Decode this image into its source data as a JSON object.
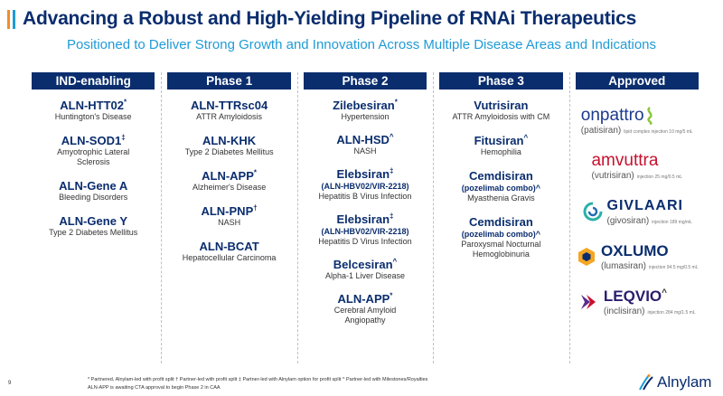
{
  "title": "Advancing a Robust and High-Yielding Pipeline of RNAi Therapeutics",
  "subtitle": "Positioned to Deliver Strong Growth and Innovation Across Multiple Disease Areas and Indications",
  "columns": [
    {
      "header": "IND-enabling",
      "assets": [
        {
          "name": "ALN-HTT02",
          "mark": "*",
          "indication": "Huntington's Disease"
        },
        {
          "name": "ALN-SOD1",
          "mark": "‡",
          "indication": "Amyotrophic Lateral Sclerosis"
        },
        {
          "name": "ALN-Gene A",
          "mark": "",
          "indication": "Bleeding Disorders"
        },
        {
          "name": "ALN-Gene Y",
          "mark": "",
          "indication": "Type 2 Diabetes Mellitus"
        }
      ]
    },
    {
      "header": "Phase 1",
      "assets": [
        {
          "name": "ALN-TTRsc04",
          "mark": "",
          "indication": "ATTR Amyloidosis"
        },
        {
          "name": "ALN-KHK",
          "mark": "",
          "indication": "Type 2 Diabetes Mellitus"
        },
        {
          "name": "ALN-APP",
          "mark": "*",
          "indication": "Alzheimer's Disease"
        },
        {
          "name": "ALN-PNP",
          "mark": "†",
          "indication": "NASH"
        },
        {
          "name": "ALN-BCAT",
          "mark": "",
          "indication": "Hepatocellular Carcinoma"
        }
      ]
    },
    {
      "header": "Phase 2",
      "assets": [
        {
          "name": "Zilebesiran",
          "mark": "*",
          "sub": "",
          "indication": "Hypertension"
        },
        {
          "name": "ALN-HSD",
          "mark": "^",
          "sub": "",
          "indication": "NASH"
        },
        {
          "name": "Elebsiran",
          "mark": "‡",
          "sub": "(ALN-HBV02/VIR-2218)",
          "indication": "Hepatitis B Virus Infection"
        },
        {
          "name": "Elebsiran",
          "mark": "‡",
          "sub": "(ALN-HBV02/VIR-2218)",
          "indication": "Hepatitis D Virus Infection"
        },
        {
          "name": "Belcesiran",
          "mark": "^",
          "sub": "",
          "indication": "Alpha-1 Liver Disease"
        },
        {
          "name": "ALN-APP",
          "mark": "*",
          "sub": "",
          "indication": "Cerebral Amyloid Angiopathy"
        }
      ]
    },
    {
      "header": "Phase 3",
      "assets": [
        {
          "name": "Vutrisiran",
          "mark": "",
          "sub": "",
          "indication": "ATTR Amyloidosis with CM"
        },
        {
          "name": "Fitusiran",
          "mark": "^",
          "sub": "",
          "indication": "Hemophilia"
        },
        {
          "name": "Cemdisiran",
          "mark": "",
          "sub": "(pozelimab combo)^",
          "indication": "Myasthenia Gravis"
        },
        {
          "name": "Cemdisiran",
          "mark": "",
          "sub": "(pozelimab combo)^",
          "indication": "Paroxysmal Nocturnal Hemoglobinuria"
        }
      ]
    },
    {
      "header": "Approved",
      "brands": [
        {
          "name": "onpattro",
          "generic": "(patisiran)",
          "dose": "lipid complex injection 10 mg/5 mL",
          "color": "#1b3a8c"
        },
        {
          "name": "amvuttra",
          "generic": "(vutrisiran)",
          "dose": "injection 25 mg/0.5 mL",
          "color": "#c8102e"
        },
        {
          "name": "GIVLAARI",
          "generic": "(givosiran)",
          "dose": "injection 189 mg/mL",
          "color": "#0a2d6e"
        },
        {
          "name": "OXLUMO",
          "generic": "(lumasiran)",
          "dose": "injection 94.5 mg/0.5 mL",
          "color": "#0a2d6e"
        },
        {
          "name": "LEQVIO",
          "mark": "^",
          "generic": "(inclisiran)",
          "dose": "injection 284 mg/1.5 mL",
          "color": "#2a1d6e"
        }
      ]
    }
  ],
  "footnote_line1": "* Partnered, Alnylam-led with profit split   † Partner-led with profit split   ‡ Partner-led with Alnylam option for profit split   ^ Partner-led with Milestones/Royalties",
  "footnote_line2": "ALN-APP is awaiting CTA approval to begin Phase 2 in CAA",
  "page_number": "9",
  "logo_text": "Alnylam",
  "colors": {
    "navy": "#0a2d6e",
    "accent_blue": "#1f9bd7",
    "accent_orange": "#f28c28"
  }
}
